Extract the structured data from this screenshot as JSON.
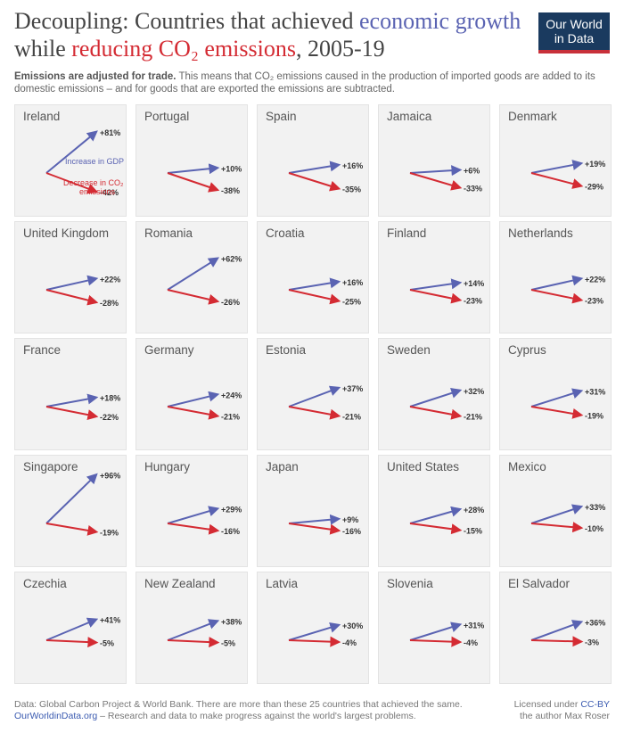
{
  "header": {
    "title_part1": "Decoupling: Countries that achieved ",
    "title_gdp": "economic growth",
    "title_part2": " while ",
    "title_co2": "reducing CO₂ emissions",
    "title_part3": ", 2005-19",
    "logo_line1": "Our World",
    "logo_line2": "in Data",
    "subtitle_bold": "Emissions are adjusted for trade.",
    "subtitle_text": " This means that CO₂ emissions caused in the production of imported goods are added to its domestic emissions – and for goods that are exported the emissions are subtracted."
  },
  "legend": {
    "gdp_label": "Increase in GDP",
    "co2_label": "Decrease in CO₂ emissions"
  },
  "colors": {
    "gdp": "#5a63b2",
    "co2": "#d42b33"
  },
  "chart_data": {
    "type": "small-multiples-arrows",
    "title": "Decoupling: Countries that achieved economic growth while reducing CO₂ emissions, 2005-19",
    "series_labels": [
      "Increase in GDP",
      "Decrease in CO₂ emissions"
    ],
    "countries": [
      {
        "name": "Ireland",
        "gdp": 81,
        "co2": -42
      },
      {
        "name": "Portugal",
        "gdp": 10,
        "co2": -38
      },
      {
        "name": "Spain",
        "gdp": 16,
        "co2": -35
      },
      {
        "name": "Jamaica",
        "gdp": 6,
        "co2": -33
      },
      {
        "name": "Denmark",
        "gdp": 19,
        "co2": -29
      },
      {
        "name": "United Kingdom",
        "gdp": 22,
        "co2": -28
      },
      {
        "name": "Romania",
        "gdp": 62,
        "co2": -26
      },
      {
        "name": "Croatia",
        "gdp": 16,
        "co2": -25
      },
      {
        "name": "Finland",
        "gdp": 14,
        "co2": -23
      },
      {
        "name": "Netherlands",
        "gdp": 22,
        "co2": -23
      },
      {
        "name": "France",
        "gdp": 18,
        "co2": -22
      },
      {
        "name": "Germany",
        "gdp": 24,
        "co2": -21
      },
      {
        "name": "Estonia",
        "gdp": 37,
        "co2": -21
      },
      {
        "name": "Sweden",
        "gdp": 32,
        "co2": -21
      },
      {
        "name": "Cyprus",
        "gdp": 31,
        "co2": -19
      },
      {
        "name": "Singapore",
        "gdp": 96,
        "co2": -19
      },
      {
        "name": "Hungary",
        "gdp": 29,
        "co2": -16
      },
      {
        "name": "Japan",
        "gdp": 9,
        "co2": -16
      },
      {
        "name": "United States",
        "gdp": 28,
        "co2": -15
      },
      {
        "name": "Mexico",
        "gdp": 33,
        "co2": -10
      },
      {
        "name": "Czechia",
        "gdp": 41,
        "co2": -5
      },
      {
        "name": "New Zealand",
        "gdp": 38,
        "co2": -5
      },
      {
        "name": "Latvia",
        "gdp": 30,
        "co2": -4
      },
      {
        "name": "Slovenia",
        "gdp": 31,
        "co2": -4
      },
      {
        "name": "El Salvador",
        "gdp": 36,
        "co2": -3
      }
    ]
  },
  "footer": {
    "source": "Data: Global Carbon Project & World Bank. There are more than these 25 countries that achieved the same.",
    "site": "OurWorldinData.org",
    "tagline": " – Research and data to make progress against the world's largest problems.",
    "license_prefix": "Licensed under ",
    "license": "CC-BY",
    "author": "the author Max Roser"
  }
}
